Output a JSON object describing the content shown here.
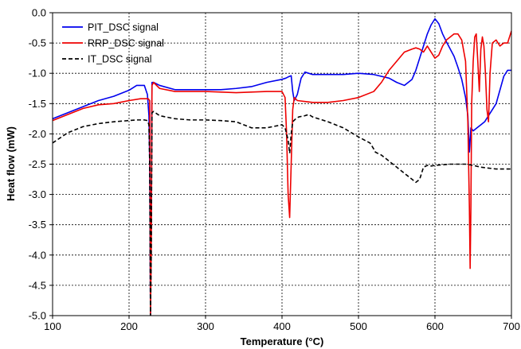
{
  "chart_data": {
    "type": "line",
    "title": "",
    "xlabel": "Temperature (°C)",
    "ylabel": "Heat flow (mW)",
    "xlim": [
      100,
      700
    ],
    "ylim": [
      -5.0,
      0.0
    ],
    "grid": true,
    "legend_position": "top-left",
    "x_ticks": [
      100,
      200,
      300,
      400,
      500,
      600,
      700
    ],
    "x_tick_labels": [
      "100",
      "200",
      "300",
      "400",
      "500",
      "600",
      "700"
    ],
    "y_ticks": [
      0,
      -0.5,
      -1,
      -1.5,
      -2,
      -2.5,
      -3,
      -3.5,
      -4,
      -4.5,
      -5
    ],
    "y_tick_labels": [
      "0.0",
      "-0.5",
      "-1.0",
      "-1.5",
      "-2.0",
      "-2.5",
      "-3.0",
      "-3.5",
      "-4.0",
      "-4.5",
      "-5.0"
    ],
    "series": [
      {
        "name": "PIT_DSC signal",
        "color": "#0000ee",
        "dash": "solid",
        "x": [
          100,
          120,
          140,
          160,
          180,
          200,
          210,
          220,
          224,
          226,
          227,
          228,
          229,
          230,
          232,
          240,
          260,
          280,
          300,
          320,
          340,
          360,
          380,
          400,
          405,
          408,
          410,
          412,
          414,
          416,
          420,
          425,
          430,
          435,
          440,
          460,
          480,
          500,
          520,
          540,
          550,
          560,
          570,
          575,
          580,
          585,
          590,
          595,
          600,
          605,
          610,
          615,
          620,
          625,
          630,
          635,
          640,
          643,
          645,
          647,
          650,
          655,
          660,
          665,
          670,
          680,
          690,
          695,
          700
        ],
        "y": [
          -1.75,
          -1.65,
          -1.55,
          -1.45,
          -1.38,
          -1.28,
          -1.2,
          -1.2,
          -1.35,
          -1.7,
          -2.5,
          -5.0,
          -3.5,
          -1.15,
          -1.15,
          -1.2,
          -1.27,
          -1.27,
          -1.27,
          -1.27,
          -1.25,
          -1.22,
          -1.15,
          -1.1,
          -1.08,
          -1.06,
          -1.05,
          -1.04,
          -1.3,
          -1.45,
          -1.35,
          -1.08,
          -0.98,
          -1.0,
          -1.02,
          -1.02,
          -1.02,
          -1.0,
          -1.02,
          -1.08,
          -1.15,
          -1.2,
          -1.1,
          -0.95,
          -0.75,
          -0.55,
          -0.35,
          -0.2,
          -0.1,
          -0.18,
          -0.35,
          -0.48,
          -0.6,
          -0.72,
          -0.9,
          -1.1,
          -1.4,
          -1.7,
          -2.3,
          -1.9,
          -1.95,
          -1.9,
          -1.85,
          -1.8,
          -1.7,
          -1.5,
          -1.05,
          -0.95,
          -0.95
        ]
      },
      {
        "name": "RRP_DSC signal",
        "color": "#ee0000",
        "dash": "solid",
        "x": [
          100,
          120,
          140,
          160,
          180,
          200,
          215,
          225,
          227,
          228,
          229,
          230,
          232,
          240,
          260,
          300,
          340,
          380,
          400,
          404,
          406,
          408,
          410,
          412,
          414,
          416,
          420,
          440,
          460,
          480,
          500,
          520,
          530,
          540,
          550,
          560,
          570,
          575,
          580,
          585,
          590,
          595,
          600,
          605,
          610,
          615,
          620,
          625,
          630,
          635,
          640,
          643,
          645,
          646,
          647,
          648,
          650,
          652,
          654,
          656,
          658,
          660,
          662,
          664,
          666,
          668,
          670,
          672,
          675,
          680,
          685,
          690,
          695,
          700
        ],
        "y": [
          -1.78,
          -1.68,
          -1.58,
          -1.52,
          -1.5,
          -1.45,
          -1.42,
          -1.42,
          -1.45,
          -5.0,
          -4.0,
          -1.2,
          -1.15,
          -1.25,
          -1.3,
          -1.3,
          -1.32,
          -1.3,
          -1.3,
          -1.4,
          -2.0,
          -3.0,
          -3.38,
          -2.5,
          -1.6,
          -1.4,
          -1.45,
          -1.48,
          -1.48,
          -1.45,
          -1.4,
          -1.3,
          -1.15,
          -0.95,
          -0.8,
          -0.65,
          -0.6,
          -0.58,
          -0.6,
          -0.65,
          -0.55,
          -0.65,
          -0.75,
          -0.7,
          -0.55,
          -0.45,
          -0.4,
          -0.35,
          -0.35,
          -0.45,
          -0.8,
          -1.8,
          -3.2,
          -4.22,
          -3.2,
          -1.5,
          -0.8,
          -0.4,
          -0.35,
          -0.8,
          -1.3,
          -0.6,
          -0.4,
          -0.55,
          -1.0,
          -1.6,
          -1.8,
          -1.0,
          -0.5,
          -0.45,
          -0.55,
          -0.5,
          -0.5,
          -0.3
        ]
      },
      {
        "name": "IT_DSC signal",
        "color": "#000000",
        "dash": "dashed",
        "x": [
          100,
          120,
          140,
          160,
          180,
          200,
          210,
          220,
          224,
          226,
          227,
          228,
          229,
          230,
          232,
          240,
          260,
          280,
          300,
          320,
          340,
          350,
          360,
          380,
          400,
          404,
          408,
          410,
          412,
          414,
          418,
          422,
          430,
          435,
          440,
          460,
          480,
          500,
          515,
          520,
          522,
          525,
          530,
          540,
          550,
          560,
          570,
          575,
          580,
          585,
          590,
          595,
          600,
          620,
          640,
          650,
          660,
          680,
          700
        ],
        "y": [
          -2.15,
          -1.98,
          -1.88,
          -1.83,
          -1.8,
          -1.78,
          -1.77,
          -1.77,
          -1.78,
          -1.85,
          -2.5,
          -5.0,
          -4.0,
          -1.65,
          -1.63,
          -1.7,
          -1.75,
          -1.77,
          -1.77,
          -1.78,
          -1.8,
          -1.85,
          -1.9,
          -1.9,
          -1.85,
          -1.9,
          -2.1,
          -2.32,
          -2.0,
          -1.8,
          -1.75,
          -1.72,
          -1.7,
          -1.68,
          -1.72,
          -1.8,
          -1.9,
          -2.05,
          -2.15,
          -2.25,
          -2.3,
          -2.32,
          -2.35,
          -2.45,
          -2.55,
          -2.65,
          -2.75,
          -2.8,
          -2.75,
          -2.55,
          -2.52,
          -2.53,
          -2.52,
          -2.5,
          -2.5,
          -2.52,
          -2.55,
          -2.58,
          -2.58
        ]
      }
    ]
  }
}
